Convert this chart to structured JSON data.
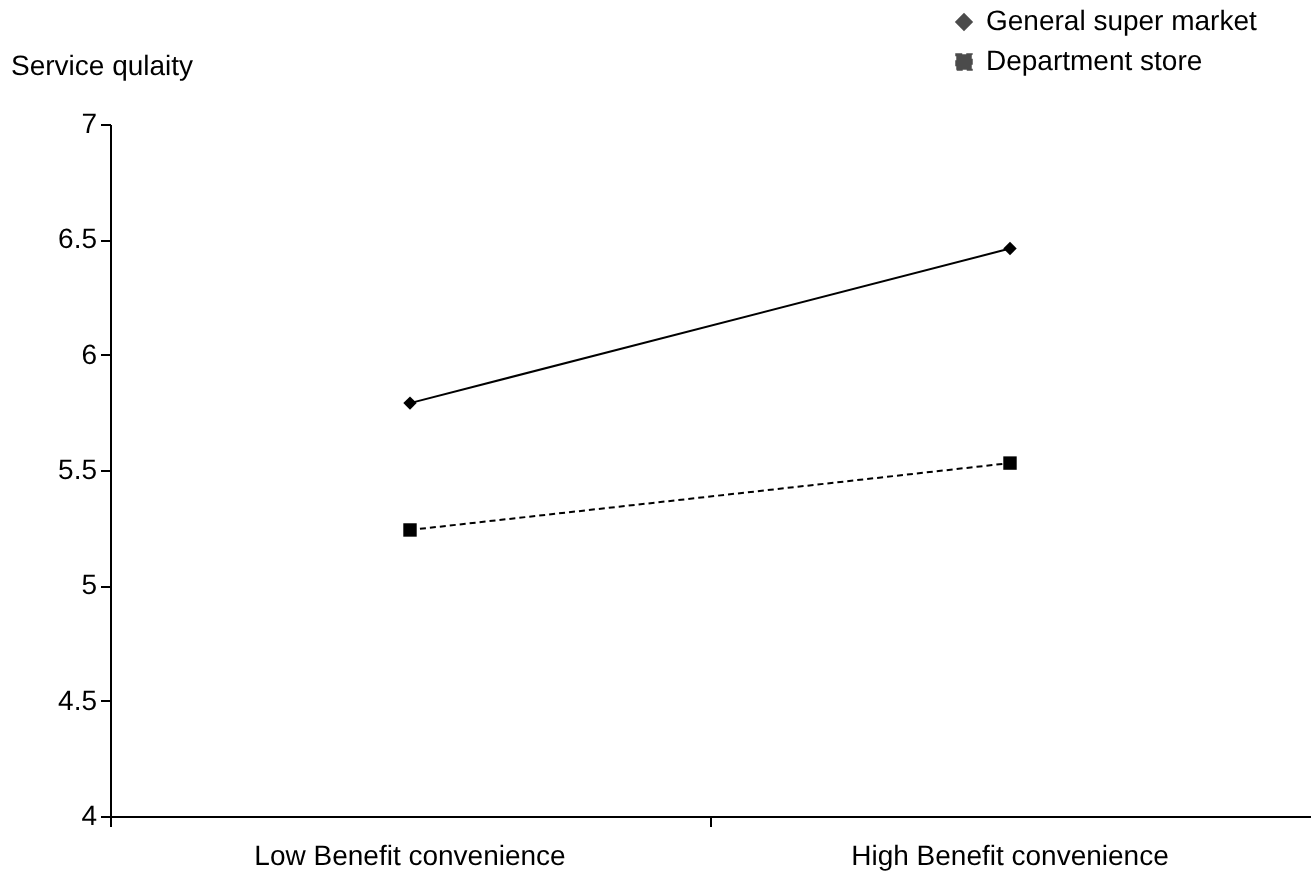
{
  "chart_data": {
    "type": "line",
    "ylabel": "Service qulaity",
    "categories": [
      "Low Benefit convenience",
      "High Benefit convenience"
    ],
    "series": [
      {
        "name": "General super market",
        "color": "#000000",
        "values": [
          5.79,
          6.46
        ],
        "marker": "diamond",
        "line_style": "solid"
      },
      {
        "name": "Department store",
        "color": "#000000",
        "values": [
          5.24,
          5.53
        ],
        "marker": "square",
        "line_style": "dashed"
      }
    ],
    "ylim": [
      4,
      7
    ],
    "yticks": [
      4,
      4.5,
      5,
      5.5,
      6,
      6.5,
      7
    ],
    "grid": false,
    "legend": "top right"
  }
}
